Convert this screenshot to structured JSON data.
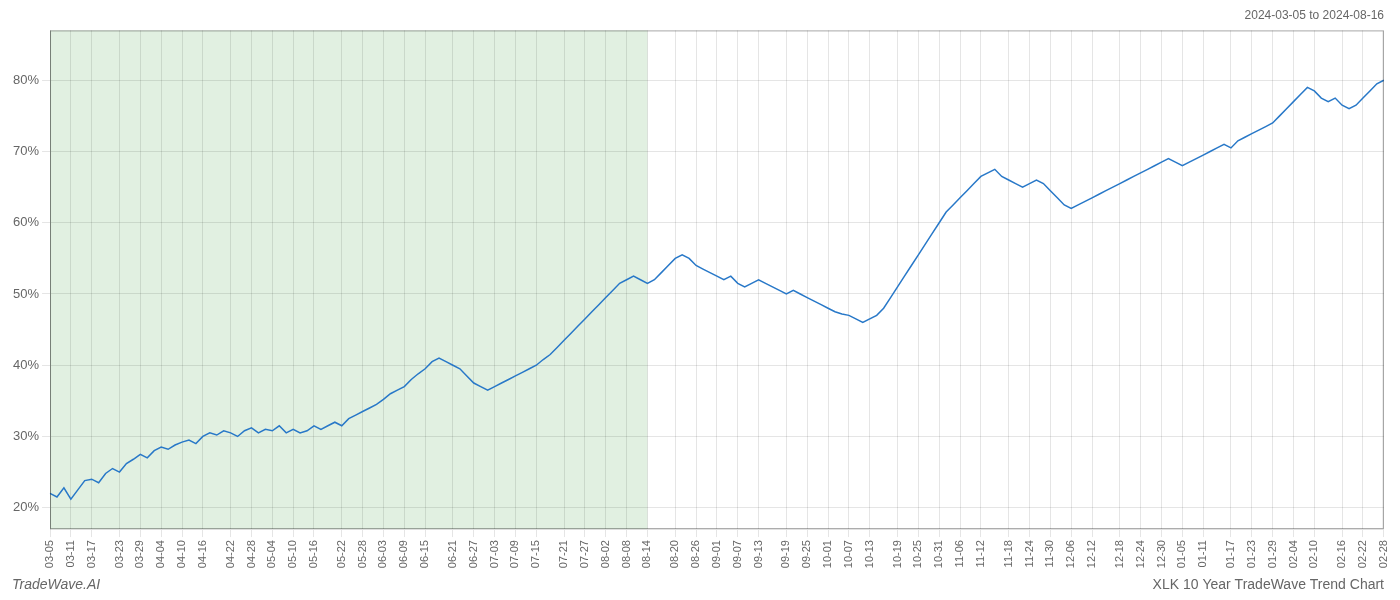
{
  "chart_data": {
    "type": "line",
    "title": "XLK 10 Year TradeWave Trend Chart",
    "subtitle": "2024-03-05 to 2024-08-16",
    "annotations": [
      "TradeWave.AI"
    ],
    "categories": [
      "03-05",
      null,
      null,
      "03-11",
      null,
      null,
      "03-17",
      null,
      null,
      null,
      "03-23",
      null,
      null,
      "03-29",
      null,
      null,
      "04-04",
      null,
      null,
      "04-10",
      null,
      null,
      "04-16",
      null,
      null,
      null,
      "04-22",
      null,
      null,
      "04-28",
      null,
      null,
      "05-04",
      null,
      null,
      "05-10",
      null,
      null,
      "05-16",
      null,
      null,
      null,
      "05-22",
      null,
      null,
      "05-28",
      null,
      null,
      "06-03",
      null,
      null,
      "06-09",
      null,
      null,
      "06-15",
      null,
      null,
      null,
      "06-21",
      null,
      null,
      "06-27",
      null,
      null,
      "07-03",
      null,
      null,
      "07-09",
      null,
      null,
      "07-15",
      null,
      null,
      null,
      "07-21",
      null,
      null,
      "07-27",
      null,
      null,
      "08-02",
      null,
      null,
      "08-08",
      null,
      null,
      "08-14",
      null,
      null,
      null,
      "08-20",
      null,
      null,
      "08-26",
      null,
      null,
      "09-01",
      null,
      null,
      "09-07",
      null,
      null,
      "09-13",
      null,
      null,
      null,
      "09-19",
      null,
      null,
      "09-25",
      null,
      null,
      "10-01",
      null,
      null,
      "10-07",
      null,
      null,
      "10-13",
      null,
      null,
      null,
      "10-19",
      null,
      null,
      "10-25",
      null,
      null,
      "10-31",
      null,
      null,
      "11-06",
      null,
      null,
      "11-12",
      null,
      null,
      null,
      "11-18",
      null,
      null,
      "11-24",
      null,
      null,
      "11-30",
      null,
      null,
      "12-06",
      null,
      null,
      "12-12",
      null,
      null,
      null,
      "12-18",
      null,
      null,
      "12-24",
      null,
      null,
      "12-30",
      null,
      null,
      "01-05",
      null,
      null,
      "01-11",
      null,
      null,
      null,
      "01-17",
      null,
      null,
      "01-23",
      null,
      null,
      "01-29",
      null,
      null,
      "02-04",
      null,
      null,
      "02-10",
      null,
      null,
      null,
      "02-16",
      null,
      null,
      "02-22",
      null,
      null,
      "02-28"
    ],
    "values": [
      22.0,
      21.5,
      22.8,
      21.2,
      22.5,
      23.8,
      24.0,
      23.5,
      24.8,
      25.5,
      25.0,
      26.2,
      26.8,
      27.5,
      27.0,
      28.0,
      28.5,
      28.2,
      28.8,
      29.2,
      29.5,
      29.0,
      30.0,
      30.5,
      30.2,
      30.8,
      30.5,
      30.0,
      30.8,
      31.2,
      30.5,
      31.0,
      30.8,
      31.5,
      30.5,
      31.0,
      30.5,
      30.8,
      31.5,
      31.0,
      31.5,
      32.0,
      31.5,
      32.5,
      33.0,
      33.5,
      34.0,
      34.5,
      35.2,
      36.0,
      36.5,
      37.0,
      38.0,
      38.8,
      39.5,
      40.5,
      41.0,
      40.5,
      40.0,
      39.5,
      38.5,
      37.5,
      37.0,
      36.5,
      37.0,
      37.5,
      38.0,
      38.5,
      39.0,
      39.5,
      40.0,
      40.8,
      41.5,
      42.5,
      43.5,
      44.5,
      45.5,
      46.5,
      47.5,
      48.5,
      49.5,
      50.5,
      51.5,
      52.0,
      52.5,
      52.0,
      51.5,
      52.0,
      53.0,
      54.0,
      55.0,
      55.5,
      55.0,
      54.0,
      53.5,
      53.0,
      52.5,
      52.0,
      52.5,
      51.5,
      51.0,
      51.5,
      52.0,
      51.5,
      51.0,
      50.5,
      50.0,
      50.5,
      50.0,
      49.5,
      49.0,
      48.5,
      48.0,
      47.5,
      47.2,
      47.0,
      46.5,
      46.0,
      46.5,
      47.0,
      48.0,
      49.5,
      51.0,
      52.5,
      54.0,
      55.5,
      57.0,
      58.5,
      60.0,
      61.5,
      62.5,
      63.5,
      64.5,
      65.5,
      66.5,
      67.0,
      67.5,
      66.5,
      66.0,
      65.5,
      65.0,
      65.5,
      66.0,
      65.5,
      64.5,
      63.5,
      62.5,
      62.0,
      62.5,
      63.0,
      63.5,
      64.0,
      64.5,
      65.0,
      65.5,
      66.0,
      66.5,
      67.0,
      67.5,
      68.0,
      68.5,
      69.0,
      68.5,
      68.0,
      68.5,
      69.0,
      69.5,
      70.0,
      70.5,
      71.0,
      70.5,
      71.5,
      72.0,
      72.5,
      73.0,
      73.5,
      74.0,
      75.0,
      76.0,
      77.0,
      78.0,
      79.0,
      78.5,
      77.5,
      77.0,
      77.5,
      76.5,
      76.0,
      76.5,
      77.5,
      78.5,
      79.5,
      80.0
    ],
    "color": "#2878c8",
    "shaded": {
      "from": "03-05",
      "to": "08-14",
      "color": "#d4ead4"
    },
    "ylim": [
      17,
      87
    ],
    "yticks": [
      {
        "value": 20,
        "label": "20%"
      },
      {
        "value": 30,
        "label": "30%"
      },
      {
        "value": 40,
        "label": "40%"
      },
      {
        "value": 50,
        "label": "50%"
      },
      {
        "value": 60,
        "label": "60%"
      },
      {
        "value": 70,
        "label": "70%"
      },
      {
        "value": 80,
        "label": "80%"
      }
    ],
    "grid": true
  }
}
